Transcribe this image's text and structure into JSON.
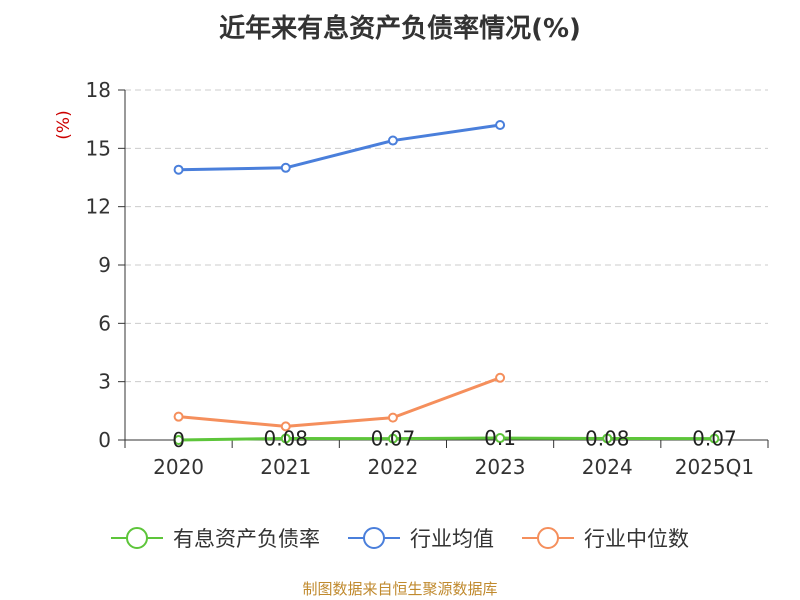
{
  "title": "近年来有息资产负债率情况(%)",
  "source": "制图数据来自恒生聚源数据库",
  "colors": {
    "debt_ratio": "#5dc53a",
    "industry_avg": "#4a7fdb",
    "industry_median": "#f58f5c",
    "axis": "#333333",
    "grid": "#cccccc",
    "ylabel": "#cc0000"
  },
  "chart_data": {
    "type": "line",
    "title": "近年来有息资产负债率情况(%)",
    "ylabel": "(%)",
    "xlabel": "",
    "categories": [
      "2020",
      "2021",
      "2022",
      "2023",
      "2024",
      "2025Q1"
    ],
    "ylim": [
      0,
      18
    ],
    "yticks": [
      "0",
      "3",
      "6",
      "9",
      "12",
      "15",
      "18"
    ],
    "grid": true,
    "legend_position": "bottom",
    "series": [
      {
        "name": "有息资产负债率",
        "color_key": "debt_ratio",
        "values": [
          0,
          0.08,
          0.07,
          0.1,
          0.08,
          0.07
        ],
        "labels": [
          "0",
          "0.08",
          "0.07",
          "0.1",
          "0.08",
          "0.07"
        ]
      },
      {
        "name": "行业均值",
        "color_key": "industry_avg",
        "values": [
          13.9,
          14.0,
          15.4,
          16.2,
          null,
          null
        ]
      },
      {
        "name": "行业中位数",
        "color_key": "industry_median",
        "values": [
          1.2,
          0.7,
          1.15,
          3.2,
          null,
          null
        ]
      }
    ]
  }
}
